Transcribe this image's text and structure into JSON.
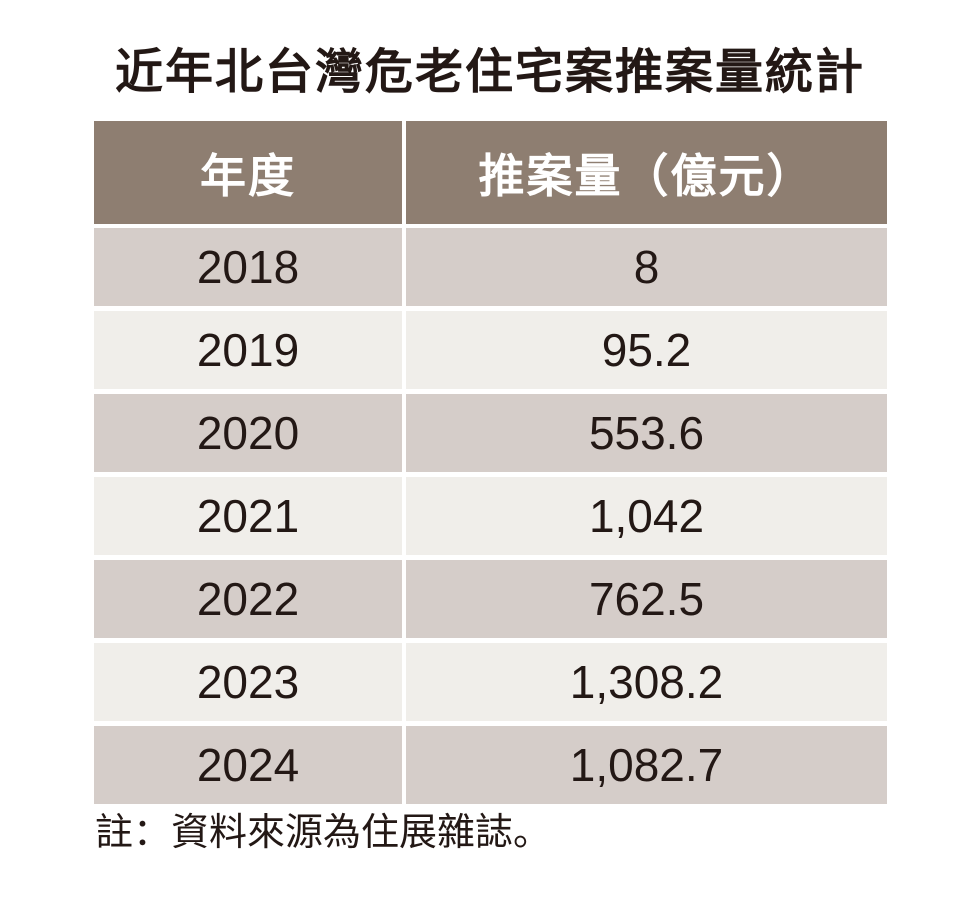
{
  "page": {
    "title": "近年北台灣危老住宅案推案量統計",
    "note": "註：資料來源為住展雜誌。"
  },
  "table": {
    "columns": [
      "年度",
      "推案量（億元）"
    ],
    "rows": [
      {
        "year": "2018",
        "value": "8"
      },
      {
        "year": "2019",
        "value": "95.2"
      },
      {
        "year": "2020",
        "value": "553.6"
      },
      {
        "year": "2021",
        "value": "1,042"
      },
      {
        "year": "2022",
        "value": "762.5"
      },
      {
        "year": "2023",
        "value": "1,308.2"
      },
      {
        "year": "2024",
        "value": "1,082.7"
      }
    ]
  },
  "colors": {
    "header_bg": "#8e7e71",
    "row_dark_bg": "#d5cdc9",
    "row_light_bg": "#f0eeea",
    "text": "#231815",
    "header_text": "#ffffff"
  },
  "chart_data": {
    "type": "table",
    "title": "近年北台灣危老住宅案推案量統計",
    "columns": [
      "年度",
      "推案量（億元）"
    ],
    "categories": [
      "2018",
      "2019",
      "2020",
      "2021",
      "2022",
      "2023",
      "2024"
    ],
    "values": [
      8,
      95.2,
      553.6,
      1042,
      762.5,
      1308.2,
      1082.7
    ],
    "note": "註：資料來源為住展雜誌。",
    "layout_hints": {
      "row_striping": [
        "dark",
        "light"
      ],
      "value_unit": "億元",
      "alignment": "center"
    }
  }
}
